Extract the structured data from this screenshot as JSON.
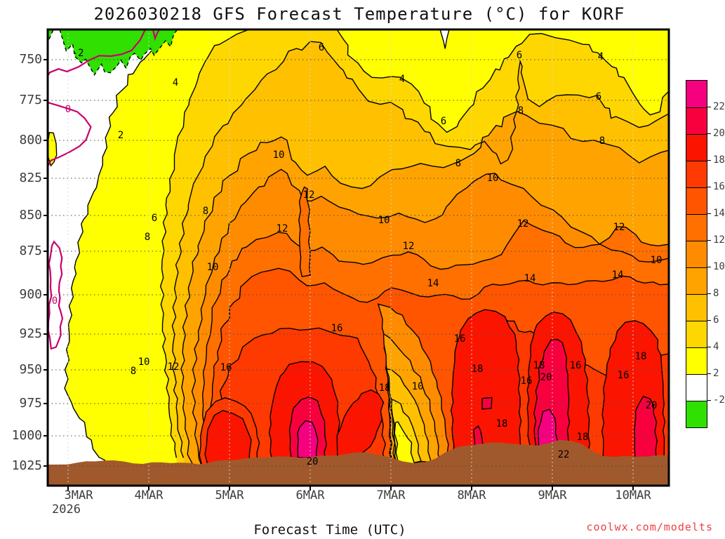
{
  "title": "2026030218 GFS Forecast Temperature (°C) for KORF",
  "watermark": "coolwx.com/modelts",
  "chart_data": {
    "type": "filled-contour",
    "title": "2026030218 GFS Forecast Temperature (°C) for KORF",
    "xlabel": "Forecast Time (UTC)",
    "x_year": "2026",
    "x_ticks": [
      "3MAR",
      "4MAR",
      "5MAR",
      "6MAR",
      "7MAR",
      "8MAR",
      "9MAR",
      "10MAR"
    ],
    "y_ticks": [
      "750",
      "775",
      "800",
      "825",
      "850",
      "875",
      "900",
      "925",
      "950",
      "975",
      "1000",
      "1025"
    ],
    "y_axis": "pressure (hPa), increasing downward",
    "contour_interval_c": 2,
    "levels_c": [
      -2,
      0,
      2,
      4,
      6,
      8,
      10,
      12,
      14,
      16,
      18,
      20,
      22
    ],
    "zero_contour_color": "#C8006E",
    "subzero_contour_style": "dashed",
    "terrain_color": "#A0592C",
    "grid": "dotted",
    "colorbar": {
      "labels_top_to_bottom": [
        "22",
        "20",
        "18",
        "16",
        "14",
        "12",
        "10",
        "8",
        "6",
        "4",
        "2",
        "-2"
      ],
      "colors_top_to_bottom": [
        "#F5007E",
        "#F8003E",
        "#FB1500",
        "#FF3A00",
        "#FF5500",
        "#FF7000",
        "#FF8C00",
        "#FFA300",
        "#FFC000",
        "#FFD700",
        "#FFFF00",
        "#FFFFFF",
        "#2FE000"
      ]
    },
    "contour_labels": [
      {
        "t": "-2",
        "x": 111,
        "y": 75
      },
      {
        "t": "0",
        "x": 97,
        "y": 155,
        "c": "#C8006E"
      },
      {
        "t": "0",
        "x": 78,
        "y": 428,
        "c": "#C8006E"
      },
      {
        "t": "2",
        "x": 172,
        "y": 192
      },
      {
        "t": "4",
        "x": 250,
        "y": 117
      },
      {
        "t": "4",
        "x": 573,
        "y": 112
      },
      {
        "t": "4",
        "x": 856,
        "y": 80
      },
      {
        "t": "6",
        "x": 220,
        "y": 310
      },
      {
        "t": "6",
        "x": 458,
        "y": 67
      },
      {
        "t": "6",
        "x": 632,
        "y": 172
      },
      {
        "t": "6",
        "x": 740,
        "y": 78
      },
      {
        "t": "6",
        "x": 853,
        "y": 137
      },
      {
        "t": "8",
        "x": 190,
        "y": 528
      },
      {
        "t": "8",
        "x": 210,
        "y": 337
      },
      {
        "t": "8",
        "x": 293,
        "y": 300
      },
      {
        "t": "8",
        "x": 653,
        "y": 232
      },
      {
        "t": "8",
        "x": 742,
        "y": 157
      },
      {
        "t": "8",
        "x": 858,
        "y": 200
      },
      {
        "t": "10",
        "x": 205,
        "y": 515
      },
      {
        "t": "10",
        "x": 303,
        "y": 380
      },
      {
        "t": "10",
        "x": 397,
        "y": 220
      },
      {
        "t": "10",
        "x": 547,
        "y": 313
      },
      {
        "t": "10",
        "x": 595,
        "y": 550
      },
      {
        "t": "10",
        "x": 702,
        "y": 253
      },
      {
        "t": "10",
        "x": 935,
        "y": 370
      },
      {
        "t": "12",
        "x": 247,
        "y": 522
      },
      {
        "t": "12",
        "x": 402,
        "y": 325
      },
      {
        "t": "12",
        "x": 440,
        "y": 277
      },
      {
        "t": "12",
        "x": 582,
        "y": 350
      },
      {
        "t": "12",
        "x": 745,
        "y": 318
      },
      {
        "t": "12",
        "x": 882,
        "y": 323
      },
      {
        "t": "14",
        "x": 617,
        "y": 403
      },
      {
        "t": "14",
        "x": 755,
        "y": 396
      },
      {
        "t": "14",
        "x": 880,
        "y": 391
      },
      {
        "t": "16",
        "x": 322,
        "y": 523
      },
      {
        "t": "16",
        "x": 480,
        "y": 467
      },
      {
        "t": "16",
        "x": 655,
        "y": 482
      },
      {
        "t": "16",
        "x": 750,
        "y": 542
      },
      {
        "t": "16",
        "x": 820,
        "y": 520
      },
      {
        "t": "16",
        "x": 888,
        "y": 534
      },
      {
        "t": "18",
        "x": 548,
        "y": 552
      },
      {
        "t": "18",
        "x": 680,
        "y": 525
      },
      {
        "t": "18",
        "x": 768,
        "y": 520
      },
      {
        "t": "18",
        "x": 913,
        "y": 507
      },
      {
        "t": "18",
        "x": 715,
        "y": 603
      },
      {
        "t": "18",
        "x": 830,
        "y": 622
      },
      {
        "t": "20",
        "x": 445,
        "y": 657
      },
      {
        "t": "20",
        "x": 778,
        "y": 537
      },
      {
        "t": "20",
        "x": 928,
        "y": 577
      },
      {
        "t": "22",
        "x": 803,
        "y": 647
      }
    ]
  }
}
